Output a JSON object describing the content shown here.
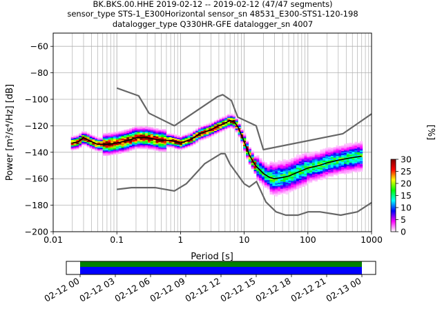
{
  "header": {
    "title_line1": "BK.BKS.00.HHE   2019-02-12 -- 2019-02-12  (47/47 segments)",
    "title_line2": "sensor_type STS-1_E300Horizontal sensor_sn 48531_E300-STS1-120-198",
    "title_line3": "datalogger_type Q330HR-GFE datalogger_sn 4007"
  },
  "chart_data": {
    "type": "heatmap",
    "xlabel": "Period [s]",
    "ylabel": "Power [m²/s⁴/Hz] [dB]",
    "xscale": "log",
    "xlim": [
      0.01,
      1000
    ],
    "ylim": [
      -200,
      -50
    ],
    "grid": true,
    "x_ticks": [
      {
        "value": 0.01,
        "label": "0.01"
      },
      {
        "value": 0.1,
        "label": "0.1"
      },
      {
        "value": 1,
        "label": "1"
      },
      {
        "value": 10,
        "label": "10"
      },
      {
        "value": 100,
        "label": "100"
      },
      {
        "value": 1000,
        "label": "1000"
      }
    ],
    "y_ticks": [
      {
        "value": -60,
        "label": "−60"
      },
      {
        "value": -80,
        "label": "−80"
      },
      {
        "value": -100,
        "label": "−100"
      },
      {
        "value": -120,
        "label": "−120"
      },
      {
        "value": -140,
        "label": "−140"
      },
      {
        "value": -160,
        "label": "−160"
      },
      {
        "value": -180,
        "label": "−180"
      },
      {
        "value": -200,
        "label": "−200"
      }
    ],
    "noise_model_high": {
      "x": [
        0.1,
        0.22,
        0.32,
        0.8,
        3.8,
        4.6,
        6.3,
        7.9,
        15.4,
        20,
        354.8,
        1000
      ],
      "y": [
        -91.5,
        -97.4,
        -110.5,
        -120,
        -98,
        -96.5,
        -101,
        -113.5,
        -120,
        -138,
        -126,
        -111
      ]
    },
    "noise_model_low": {
      "x": [
        0.1,
        0.17,
        0.4,
        0.8,
        1.24,
        2.4,
        4.3,
        5,
        6,
        10,
        12,
        15.6,
        21.9,
        31.6,
        45,
        70,
        101,
        154,
        328,
        600,
        1000
      ],
      "y": [
        -168,
        -166.7,
        -166.7,
        -169.2,
        -163.7,
        -148.6,
        -141.1,
        -141.1,
        -149,
        -163.8,
        -166.2,
        -162.1,
        -177.5,
        -185,
        -187.5,
        -187.5,
        -185,
        -185,
        -187.5,
        -185,
        -178
      ]
    },
    "mean_curve": {
      "x": [
        0.02,
        0.025,
        0.03,
        0.04,
        0.05,
        0.07,
        0.1,
        0.15,
        0.2,
        0.3,
        0.5,
        0.7,
        1.0,
        1.5,
        2.0,
        3.0,
        4.0,
        5.0,
        6.0,
        7.0,
        8.0,
        10,
        12,
        15,
        20,
        25,
        30,
        40,
        50,
        70,
        100,
        150,
        200,
        300,
        500,
        700
      ],
      "y": [
        -133,
        -132,
        -129,
        -132,
        -134,
        -134,
        -133,
        -131,
        -129,
        -129,
        -131,
        -131,
        -133,
        -130,
        -126,
        -123,
        -120,
        -118,
        -116,
        -117,
        -121,
        -132,
        -142,
        -150,
        -156,
        -159,
        -160,
        -159,
        -158,
        -155,
        -152,
        -150,
        -148,
        -146,
        -144,
        -143
      ]
    },
    "colorbar": {
      "label": "[%]",
      "min": 0,
      "max": 30,
      "ticks": [
        {
          "value": 0,
          "label": "0"
        },
        {
          "value": 5,
          "label": "5"
        },
        {
          "value": 10,
          "label": "10"
        },
        {
          "value": 15,
          "label": "15"
        },
        {
          "value": 20,
          "label": "20"
        },
        {
          "value": 25,
          "label": "25"
        },
        {
          "value": 30,
          "label": "30"
        }
      ],
      "stops": [
        "#ffffff",
        "#ff00ff",
        "#0000ff",
        "#00ffff",
        "#00ff00",
        "#ffff00",
        "#ff0000",
        "#800000"
      ]
    },
    "timeline": {
      "start": "2019-02-12 00:00",
      "end": "2019-02-13 00:00",
      "tick_labels": [
        "02-12 00",
        "02-12 03",
        "02-12 06",
        "02-12 09",
        "02-12 12",
        "02-12 15",
        "02-12 18",
        "02-12 21",
        "02-13 00"
      ],
      "upper_band_color": "#008000",
      "lower_band_color": "#0000ff"
    }
  }
}
